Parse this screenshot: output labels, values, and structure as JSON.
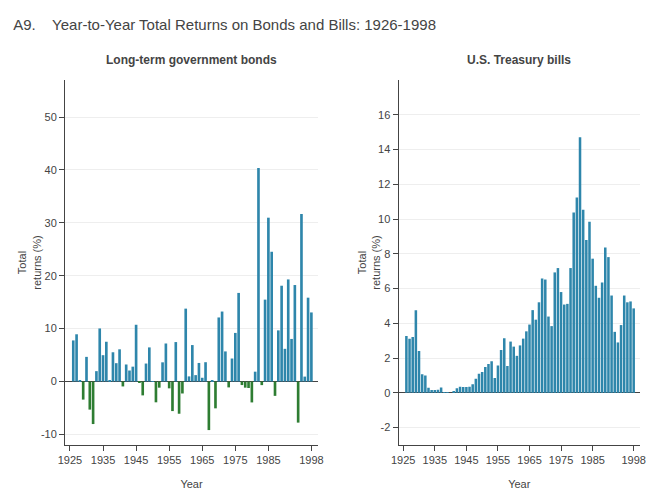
{
  "title": "A9.    Year-to-Year Total Returns on Bonds and Bills: 1926-1998",
  "chart_data": [
    {
      "type": "bar",
      "title": "Long-term government bonds",
      "xlabel": "Year",
      "ylabel": "Total\nreturns (%)",
      "x": [
        1926,
        1927,
        1928,
        1929,
        1930,
        1931,
        1932,
        1933,
        1934,
        1935,
        1936,
        1937,
        1938,
        1939,
        1940,
        1941,
        1942,
        1943,
        1944,
        1945,
        1946,
        1947,
        1948,
        1949,
        1950,
        1951,
        1952,
        1953,
        1954,
        1955,
        1956,
        1957,
        1958,
        1959,
        1960,
        1961,
        1962,
        1963,
        1964,
        1965,
        1966,
        1967,
        1968,
        1969,
        1970,
        1971,
        1972,
        1973,
        1974,
        1975,
        1976,
        1977,
        1978,
        1979,
        1980,
        1981,
        1982,
        1983,
        1984,
        1985,
        1986,
        1987,
        1988,
        1989,
        1990,
        1991,
        1992,
        1993,
        1994,
        1995,
        1996,
        1997,
        1998
      ],
      "values": [
        7.77,
        8.93,
        0.1,
        -3.42,
        4.66,
        -5.31,
        -8.04,
        1.96,
        10.03,
        4.98,
        7.52,
        0.23,
        5.53,
        3.47,
        6.09,
        -0.93,
        3.22,
        2.08,
        2.81,
        10.73,
        -0.1,
        -2.62,
        3.4,
        6.45,
        0.06,
        -3.93,
        -1.16,
        3.63,
        7.19,
        -1.29,
        -5.59,
        7.46,
        -6.09,
        -2.26,
        13.78,
        0.97,
        6.89,
        1.21,
        3.51,
        0.71,
        3.65,
        -9.18,
        0.26,
        -5.07,
        12.11,
        13.23,
        5.69,
        -1.11,
        4.35,
        9.19,
        16.75,
        -0.67,
        -1.16,
        -1.23,
        -3.95,
        1.86,
        40.36,
        -0.68,
        15.48,
        30.97,
        24.53,
        -2.71,
        9.67,
        18.11,
        6.18,
        19.3,
        8.05,
        18.24,
        -7.77,
        31.67,
        0.93,
        15.85,
        13.06
      ],
      "colors": [
        "#2E86AB",
        "#2E86AB",
        "#2E86AB",
        "#2E7D32",
        "#2E86AB",
        "#2E7D32",
        "#2E7D32",
        "#2E86AB",
        "#2E86AB",
        "#2E86AB",
        "#2E86AB",
        "#2E86AB",
        "#2E86AB",
        "#2E86AB",
        "#2E86AB",
        "#2E7D32",
        "#2E86AB",
        "#2E86AB",
        "#2E86AB",
        "#2E86AB",
        "#2E7D32",
        "#2E7D32",
        "#2E86AB",
        "#2E86AB",
        "#2E86AB",
        "#2E7D32",
        "#2E7D32",
        "#2E86AB",
        "#2E86AB",
        "#2E7D32",
        "#2E7D32",
        "#2E86AB",
        "#2E7D32",
        "#2E7D32",
        "#2E86AB",
        "#2E86AB",
        "#2E86AB",
        "#2E86AB",
        "#2E86AB",
        "#2E86AB",
        "#2E86AB",
        "#2E7D32",
        "#2E86AB",
        "#2E7D32",
        "#2E86AB",
        "#2E86AB",
        "#2E86AB",
        "#2E7D32",
        "#2E86AB",
        "#2E86AB",
        "#2E86AB",
        "#2E7D32",
        "#2E7D32",
        "#2E7D32",
        "#2E7D32",
        "#2E86AB",
        "#2E86AB",
        "#2E7D32",
        "#2E86AB",
        "#2E86AB",
        "#2E86AB",
        "#2E7D32",
        "#2E86AB",
        "#2E86AB",
        "#2E86AB",
        "#2E86AB",
        "#2E86AB",
        "#2E86AB",
        "#2E7D32",
        "#2E86AB",
        "#2E86AB",
        "#2E86AB",
        "#2E86AB"
      ],
      "xlim": [
        1923.5,
        2000
      ],
      "xticks": [
        1925,
        1935,
        1945,
        1955,
        1965,
        1975,
        1985,
        1998
      ],
      "ylim": [
        -12,
        57
      ],
      "yticks": [
        -10,
        0,
        10,
        20,
        30,
        40,
        50
      ],
      "grid": true
    },
    {
      "type": "bar",
      "title": "U.S. Treasury bills",
      "xlabel": "Year",
      "ylabel": "Total\nreturns (%)",
      "x": [
        1926,
        1927,
        1928,
        1929,
        1930,
        1931,
        1932,
        1933,
        1934,
        1935,
        1936,
        1937,
        1938,
        1939,
        1940,
        1941,
        1942,
        1943,
        1944,
        1945,
        1946,
        1947,
        1948,
        1949,
        1950,
        1951,
        1952,
        1953,
        1954,
        1955,
        1956,
        1957,
        1958,
        1959,
        1960,
        1961,
        1962,
        1963,
        1964,
        1965,
        1966,
        1967,
        1968,
        1969,
        1970,
        1971,
        1972,
        1973,
        1974,
        1975,
        1976,
        1977,
        1978,
        1979,
        1980,
        1981,
        1982,
        1983,
        1984,
        1985,
        1986,
        1987,
        1988,
        1989,
        1990,
        1991,
        1992,
        1993,
        1994,
        1995,
        1996,
        1997,
        1998
      ],
      "values": [
        3.27,
        3.12,
        3.21,
        4.75,
        2.41,
        1.07,
        1.0,
        0.3,
        0.16,
        0.17,
        0.18,
        0.31,
        0.02,
        0.02,
        0.0,
        0.06,
        0.27,
        0.35,
        0.33,
        0.33,
        0.35,
        0.5,
        0.81,
        1.1,
        1.2,
        1.49,
        1.66,
        1.82,
        0.86,
        1.57,
        2.46,
        3.14,
        1.54,
        2.95,
        2.66,
        2.13,
        2.73,
        3.12,
        3.54,
        3.93,
        4.76,
        4.21,
        5.21,
        6.58,
        6.52,
        4.39,
        3.84,
        6.93,
        7.18,
        5.8,
        5.08,
        5.12,
        7.18,
        10.38,
        11.24,
        14.71,
        10.54,
        8.8,
        9.85,
        7.72,
        6.16,
        5.47,
        6.35,
        8.37,
        7.81,
        5.6,
        3.51,
        2.9,
        3.9,
        5.6,
        5.21,
        5.26,
        4.86
      ],
      "color": "#2E86AB",
      "xlim": [
        1923.5,
        2000
      ],
      "xticks": [
        1925,
        1935,
        1945,
        1955,
        1965,
        1975,
        1985,
        1998
      ],
      "ylim": [
        -3,
        18
      ],
      "yticks": [
        -2,
        0,
        2,
        4,
        6,
        8,
        10,
        12,
        14,
        16
      ],
      "grid": true
    }
  ]
}
